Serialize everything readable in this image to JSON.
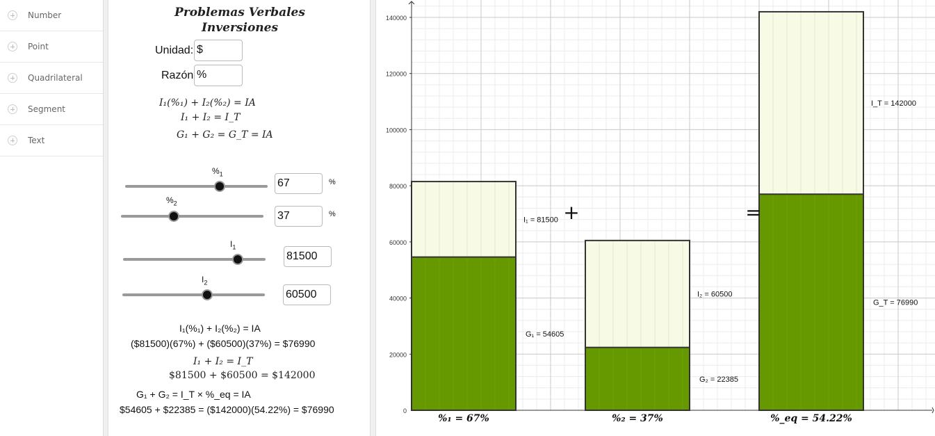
{
  "sidebar": {
    "items": [
      {
        "label": "Number"
      },
      {
        "label": "Point"
      },
      {
        "label": "Quadrilateral"
      },
      {
        "label": "Segment"
      },
      {
        "label": "Text"
      }
    ]
  },
  "panel": {
    "title_line1": "Problemas Verbales",
    "title_line2": "Inversiones",
    "unit_label": "Unidad:",
    "unit_value": "$",
    "ratio_label": "Razón",
    "ratio_value": "%",
    "formula1": "I₁(%₁) + I₂(%₂) = IA",
    "formula2": "I₁ + I₂ = I_T",
    "formula3": "G₁ + G₂ = G_T = IA",
    "sliders": [
      {
        "name": "%",
        "sub": "1",
        "value": "67",
        "unit": "%",
        "fraction": 0.67
      },
      {
        "name": "%",
        "sub": "2",
        "value": "37",
        "unit": "%",
        "fraction": 0.37
      },
      {
        "name": "I",
        "sub": "1",
        "value": "81500",
        "unit": "",
        "fraction": 0.815
      },
      {
        "name": "I",
        "sub": "2",
        "value": "60500",
        "unit": "",
        "fraction": 0.605
      }
    ],
    "calc1_a": "I₁(%₁) + I₂(%₂) = IA",
    "calc1_b": "($81500)(67%) + ($60500)(37%) = $76990",
    "calc2_a": "I₁ + I₂ = I_T",
    "calc2_b": "$81500 + $60500 = $142000",
    "calc3_a": "G₁ + G₂ = I_T × %_eq = IA",
    "calc3_b": "$54605 + $22385 = ($142000)(54.22%) = $76990"
  },
  "chart_data": {
    "type": "bar",
    "title": "",
    "xlabel": "",
    "ylabel": "",
    "ylim": [
      0,
      140000
    ],
    "y_ticks": [
      0,
      20000,
      40000,
      60000,
      80000,
      100000,
      120000,
      140000
    ],
    "grid": true,
    "bars": [
      {
        "total": 81500,
        "gain": 54605,
        "total_label": "I₁ = 81500",
        "gain_label": "G₁ = 54605",
        "bottom_label": "%₁ = 67%"
      },
      {
        "total": 60500,
        "gain": 22385,
        "total_label": "I₂ = 60500",
        "gain_label": "G₂ = 22385",
        "bottom_label": "%₂ = 37%"
      },
      {
        "total": 142000,
        "gain": 76990,
        "total_label": "I_T = 142000",
        "gain_label": "G_T = 76990",
        "bottom_label": "%_eq = 54.22%"
      }
    ],
    "operators": [
      "+",
      "="
    ],
    "colors": {
      "gain": "#669900",
      "total": "#f7fbe6",
      "stroke": "#333333",
      "grid_major": "#c8c8c8",
      "grid_minor": "#ececec"
    }
  }
}
